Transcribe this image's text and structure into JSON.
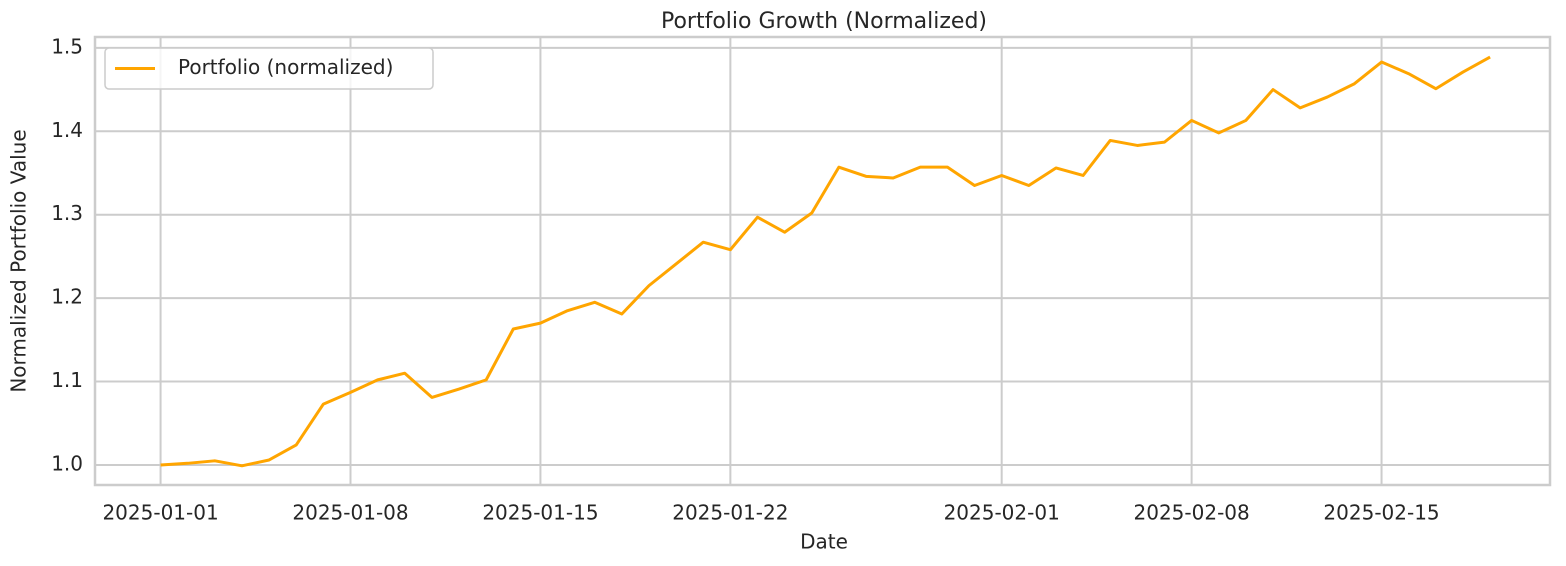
{
  "chart_data": {
    "type": "line",
    "title": "Portfolio Growth (Normalized)",
    "xlabel": "Date",
    "ylabel": "Normalized Portfolio Value",
    "x": [
      "2025-01-01",
      "2025-01-02",
      "2025-01-03",
      "2025-01-04",
      "2025-01-05",
      "2025-01-06",
      "2025-01-07",
      "2025-01-08",
      "2025-01-09",
      "2025-01-10",
      "2025-01-11",
      "2025-01-12",
      "2025-01-13",
      "2025-01-14",
      "2025-01-15",
      "2025-01-16",
      "2025-01-17",
      "2025-01-18",
      "2025-01-19",
      "2025-01-20",
      "2025-01-21",
      "2025-01-22",
      "2025-01-23",
      "2025-01-24",
      "2025-01-25",
      "2025-01-26",
      "2025-01-27",
      "2025-01-28",
      "2025-01-29",
      "2025-01-30",
      "2025-01-31",
      "2025-02-01",
      "2025-02-02",
      "2025-02-03",
      "2025-02-04",
      "2025-02-05",
      "2025-02-06",
      "2025-02-07",
      "2025-02-08",
      "2025-02-09",
      "2025-02-10",
      "2025-02-11",
      "2025-02-12",
      "2025-02-13",
      "2025-02-14",
      "2025-02-15",
      "2025-02-16",
      "2025-02-17",
      "2025-02-18",
      "2025-02-19"
    ],
    "series": [
      {
        "name": "Portfolio (normalized)",
        "color": "#FFA500",
        "values": [
          1.0,
          1.002,
          1.005,
          0.999,
          1.006,
          1.024,
          1.073,
          1.087,
          1.102,
          1.11,
          1.081,
          1.091,
          1.102,
          1.163,
          1.17,
          1.185,
          1.195,
          1.181,
          1.215,
          1.241,
          1.267,
          1.258,
          1.297,
          1.279,
          1.302,
          1.357,
          1.346,
          1.344,
          1.357,
          1.357,
          1.335,
          1.347,
          1.335,
          1.356,
          1.347,
          1.389,
          1.383,
          1.387,
          1.413,
          1.398,
          1.413,
          1.45,
          1.428,
          1.441,
          1.457,
          1.483,
          1.469,
          1.451,
          1.471,
          1.489
        ]
      }
    ],
    "xlim": [
      "2024-12-29T14:00:00Z",
      "2025-02-21T05:00:00Z"
    ],
    "xticks": [
      "2025-01-01",
      "2025-01-08",
      "2025-01-15",
      "2025-01-22",
      "2025-02-01",
      "2025-02-08",
      "2025-02-15"
    ],
    "ylim": [
      0.976,
      1.513
    ],
    "yticks": [
      {
        "value": 1,
        "label": "1.0"
      },
      1.1,
      1.2,
      1.3,
      1.4,
      1.5
    ],
    "grid": true,
    "legend": "upper left"
  }
}
